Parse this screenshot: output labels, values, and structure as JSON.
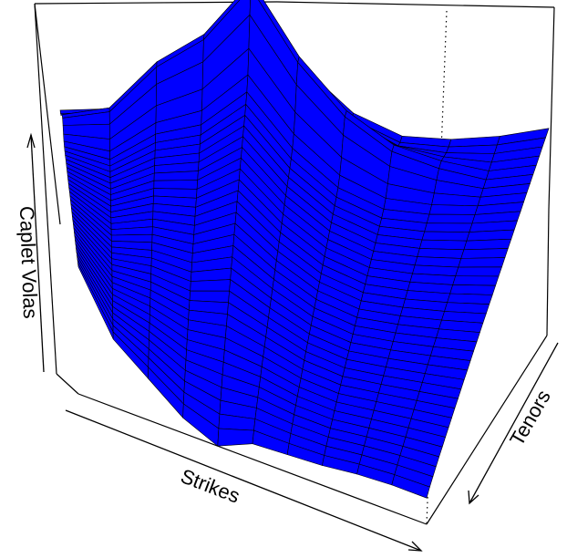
{
  "chart_data": {
    "type": "surface",
    "title": "",
    "xlabel": "Strikes",
    "ylabel": "Tenors",
    "zlabel": "Caplet Volas",
    "surface_color": "#0000ff",
    "mesh_color": "#000000",
    "box": true,
    "ticks": false,
    "n_strikes": 11,
    "n_tenors": 40,
    "profile_front": [
      0.58,
      0.31,
      0.19,
      0.07,
      0.0,
      0.07,
      0.08,
      0.09,
      0.11,
      0.12,
      0.12
    ],
    "profile_back": [
      0.52,
      0.52,
      0.7,
      0.79,
      1.0,
      0.68,
      0.47,
      0.36,
      0.34,
      0.35,
      0.38
    ],
    "peak_tenor_fraction": 0.88
  }
}
